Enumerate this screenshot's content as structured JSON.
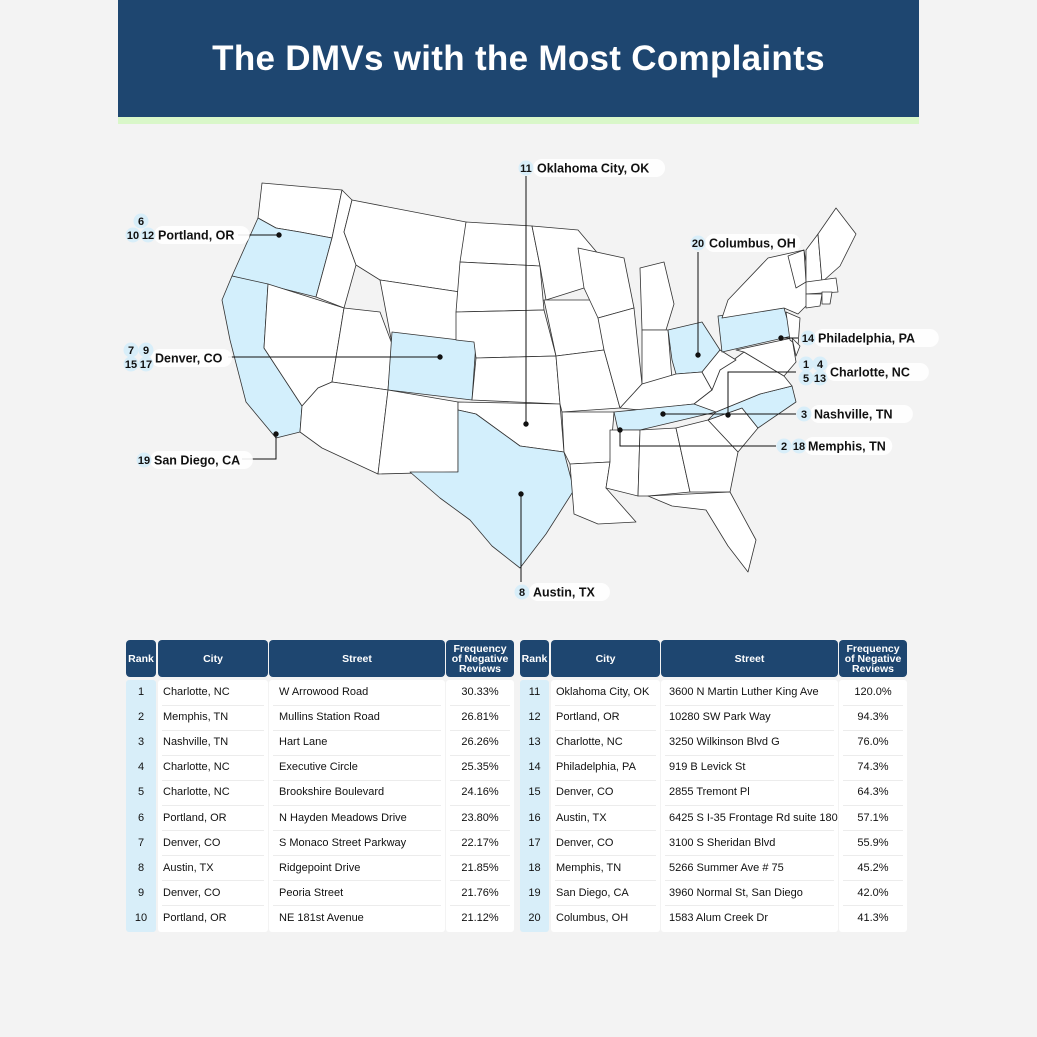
{
  "title": "The DMVs with the Most Complaints",
  "colors": {
    "header": "#1e4670",
    "accent": "#d9f7c9",
    "highlight": "#d3effc",
    "badge": "#d8eef9"
  },
  "map": {
    "highlighted_states": [
      "Oregon",
      "California",
      "Colorado",
      "Texas",
      "Ohio",
      "Pennsylvania",
      "Tennessee",
      "North Carolina"
    ],
    "callouts": [
      {
        "ranks": [
          "11"
        ],
        "city": "Oklahoma City, OK"
      },
      {
        "ranks": [
          "6",
          "10",
          "12"
        ],
        "city": "Portland, OR"
      },
      {
        "ranks": [
          "20"
        ],
        "city": "Columbus, OH"
      },
      {
        "ranks": [
          "14"
        ],
        "city": "Philadelphia, PA"
      },
      {
        "ranks": [
          "7",
          "9",
          "15",
          "17"
        ],
        "city": "Denver, CO"
      },
      {
        "ranks": [
          "1",
          "4",
          "5",
          "13"
        ],
        "city": "Charlotte, NC"
      },
      {
        "ranks": [
          "3"
        ],
        "city": "Nashville, TN"
      },
      {
        "ranks": [
          "2",
          "18"
        ],
        "city": "Memphis, TN"
      },
      {
        "ranks": [
          "19"
        ],
        "city": "San Diego, CA"
      },
      {
        "ranks": [
          "8"
        ],
        "city": "Austin, TX"
      }
    ]
  },
  "table": {
    "headers": {
      "rank": "Rank",
      "city": "City",
      "street": "Street",
      "freq": "Frequency of Negative Reviews"
    }
  },
  "chart_data": {
    "type": "table",
    "title": "The DMVs with the Most Complaints",
    "columns": [
      "Rank",
      "City",
      "Street",
      "Frequency of Negative Reviews"
    ],
    "rows": [
      {
        "rank": "1",
        "city": "Charlotte, NC",
        "street": "W Arrowood Road",
        "freq": "30.33%"
      },
      {
        "rank": "2",
        "city": "Memphis, TN",
        "street": "Mullins Station Road",
        "freq": "26.81%"
      },
      {
        "rank": "3",
        "city": "Nashville, TN",
        "street": "Hart Lane",
        "freq": "26.26%"
      },
      {
        "rank": "4",
        "city": "Charlotte, NC",
        "street": "Executive Circle",
        "freq": "25.35%"
      },
      {
        "rank": "5",
        "city": "Charlotte, NC",
        "street": "Brookshire Boulevard",
        "freq": "24.16%"
      },
      {
        "rank": "6",
        "city": "Portland, OR",
        "street": "N Hayden Meadows Drive",
        "freq": "23.80%"
      },
      {
        "rank": "7",
        "city": "Denver, CO",
        "street": "S Monaco Street Parkway",
        "freq": "22.17%"
      },
      {
        "rank": "8",
        "city": "Austin, TX",
        "street": "Ridgepoint Drive",
        "freq": "21.85%"
      },
      {
        "rank": "9",
        "city": "Denver, CO",
        "street": "Peoria Street",
        "freq": "21.76%"
      },
      {
        "rank": "10",
        "city": "Portland, OR",
        "street": "NE 181st Avenue",
        "freq": "21.12%"
      },
      {
        "rank": "11",
        "city": "Oklahoma City, OK",
        "street": "3600 N Martin Luther King Ave",
        "freq": "120.0%"
      },
      {
        "rank": "12",
        "city": "Portland, OR",
        "street": "10280 SW Park Way",
        "freq": "94.3%"
      },
      {
        "rank": "13",
        "city": "Charlotte, NC",
        "street": "3250 Wilkinson Blvd G",
        "freq": "76.0%"
      },
      {
        "rank": "14",
        "city": "Philadelphia, PA",
        "street": "919 B Levick St",
        "freq": "74.3%"
      },
      {
        "rank": "15",
        "city": "Denver, CO",
        "street": "2855 Tremont Pl",
        "freq": "64.3%"
      },
      {
        "rank": "16",
        "city": "Austin, TX",
        "street": "6425 S I-35 Frontage Rd suite 180",
        "freq": "57.1%"
      },
      {
        "rank": "17",
        "city": "Denver, CO",
        "street": "3100 S Sheridan Blvd",
        "freq": "55.9%"
      },
      {
        "rank": "18",
        "city": "Memphis, TN",
        "street": "5266 Summer Ave # 75",
        "freq": "45.2%"
      },
      {
        "rank": "19",
        "city": "San Diego, CA",
        "street": "3960 Normal St, San Diego",
        "freq": "42.0%"
      },
      {
        "rank": "20",
        "city": "Columbus, OH",
        "street": "1583 Alum Creek Dr",
        "freq": "41.3%"
      }
    ]
  }
}
